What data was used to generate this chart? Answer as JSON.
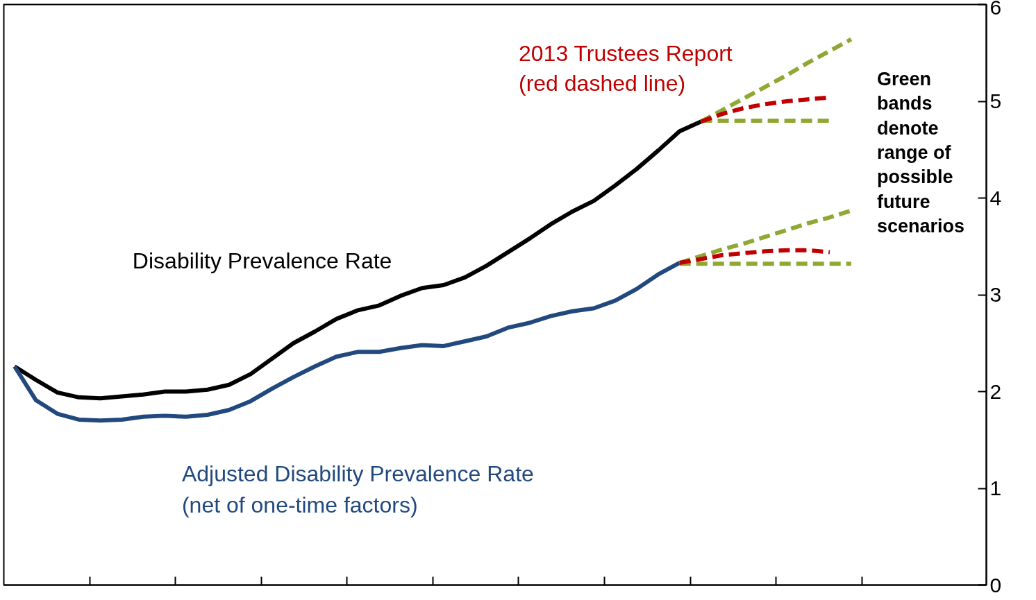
{
  "chart_data": {
    "type": "line",
    "ylim": [
      0,
      6
    ],
    "yticks": [
      0,
      1,
      2,
      3,
      4,
      5,
      6
    ],
    "tick_labels": "y",
    "grid": false,
    "categories": [
      null,
      null,
      null,
      null,
      null,
      null,
      null,
      null,
      null,
      null,
      null,
      null,
      null,
      null,
      null,
      null,
      null,
      null,
      null,
      null,
      null,
      null,
      null,
      null,
      null,
      null,
      null,
      null,
      null,
      null,
      null,
      null,
      null,
      null,
      null,
      null,
      null,
      null,
      null,
      null
    ],
    "series": [
      {
        "name": "Disability Prevalence Rate",
        "color": "#000000",
        "line_style": "solid",
        "values": [
          2.26,
          2.12,
          1.99,
          1.94,
          1.93,
          1.95,
          1.97,
          2.0,
          2.0,
          2.02,
          2.07,
          2.18,
          2.34,
          2.5,
          2.62,
          2.75,
          2.84,
          2.89,
          2.99,
          3.07,
          3.1,
          3.18,
          3.3,
          3.44,
          3.58,
          3.73,
          3.86,
          3.97,
          4.13,
          4.3,
          4.49,
          4.69,
          4.79,
          null,
          null,
          null,
          null,
          null,
          null,
          null
        ]
      },
      {
        "name": "Adjusted Disability Prevalence Rate\n(net of one-time factors)",
        "color": "#22497e",
        "line_style": "solid",
        "values": [
          2.26,
          1.91,
          1.77,
          1.71,
          1.7,
          1.71,
          1.74,
          1.75,
          1.74,
          1.76,
          1.81,
          1.9,
          2.03,
          2.15,
          2.26,
          2.36,
          2.41,
          2.41,
          2.45,
          2.48,
          2.47,
          2.52,
          2.57,
          2.66,
          2.71,
          2.78,
          2.83,
          2.86,
          2.94,
          3.06,
          3.21,
          3.33,
          null,
          null,
          null,
          null,
          null,
          null,
          null,
          null
        ]
      },
      {
        "color": "#8fa832",
        "line_style": "dashed",
        "values": [
          null,
          null,
          null,
          null,
          null,
          null,
          null,
          null,
          null,
          null,
          null,
          null,
          null,
          null,
          null,
          null,
          null,
          null,
          null,
          null,
          null,
          null,
          null,
          null,
          null,
          null,
          null,
          null,
          null,
          null,
          null,
          null,
          4.79,
          4.91,
          5.03,
          5.15,
          5.27,
          5.4,
          5.52,
          5.64
        ]
      },
      {
        "color": "#8fa832",
        "line_style": "dashed",
        "values": [
          null,
          null,
          null,
          null,
          null,
          null,
          null,
          null,
          null,
          null,
          null,
          null,
          null,
          null,
          null,
          null,
          null,
          null,
          null,
          null,
          null,
          null,
          null,
          null,
          null,
          null,
          null,
          null,
          null,
          null,
          null,
          null,
          4.8,
          4.8,
          4.8,
          4.8,
          4.8,
          4.8,
          4.8,
          null
        ]
      },
      {
        "color": "#c00000",
        "line_style": "dashed",
        "values": [
          null,
          null,
          null,
          null,
          null,
          null,
          null,
          null,
          null,
          null,
          null,
          null,
          null,
          null,
          null,
          null,
          null,
          null,
          null,
          null,
          null,
          null,
          null,
          null,
          null,
          null,
          null,
          null,
          null,
          null,
          null,
          null,
          4.79,
          4.87,
          4.93,
          4.97,
          5.0,
          5.02,
          5.04,
          null
        ]
      },
      {
        "color": "#8fa832",
        "line_style": "dashed",
        "values": [
          null,
          null,
          null,
          null,
          null,
          null,
          null,
          null,
          null,
          null,
          null,
          null,
          null,
          null,
          null,
          null,
          null,
          null,
          null,
          null,
          null,
          null,
          null,
          null,
          null,
          null,
          null,
          null,
          null,
          null,
          null,
          3.33,
          3.4,
          3.47,
          3.53,
          3.6,
          3.67,
          3.74,
          3.8,
          3.87
        ]
      },
      {
        "color": "#8fa832",
        "line_style": "dashed",
        "values": [
          null,
          null,
          null,
          null,
          null,
          null,
          null,
          null,
          null,
          null,
          null,
          null,
          null,
          null,
          null,
          null,
          null,
          null,
          null,
          null,
          null,
          null,
          null,
          null,
          null,
          null,
          null,
          null,
          null,
          null,
          null,
          3.32,
          3.32,
          3.32,
          3.32,
          3.32,
          3.32,
          3.32,
          3.32,
          3.32
        ]
      },
      {
        "color": "#c00000",
        "line_style": "dashed",
        "values": [
          null,
          null,
          null,
          null,
          null,
          null,
          null,
          null,
          null,
          null,
          null,
          null,
          null,
          null,
          null,
          null,
          null,
          null,
          null,
          null,
          null,
          null,
          null,
          null,
          null,
          null,
          null,
          null,
          null,
          null,
          null,
          3.33,
          3.37,
          3.41,
          3.43,
          3.45,
          3.46,
          3.46,
          3.44,
          null
        ]
      }
    ],
    "annotations": [
      "2013 Trustees Report\n(red dashed line)",
      "Green\nbands\ndenote\nrange of\npossible\nfuture\nscenarios"
    ]
  }
}
